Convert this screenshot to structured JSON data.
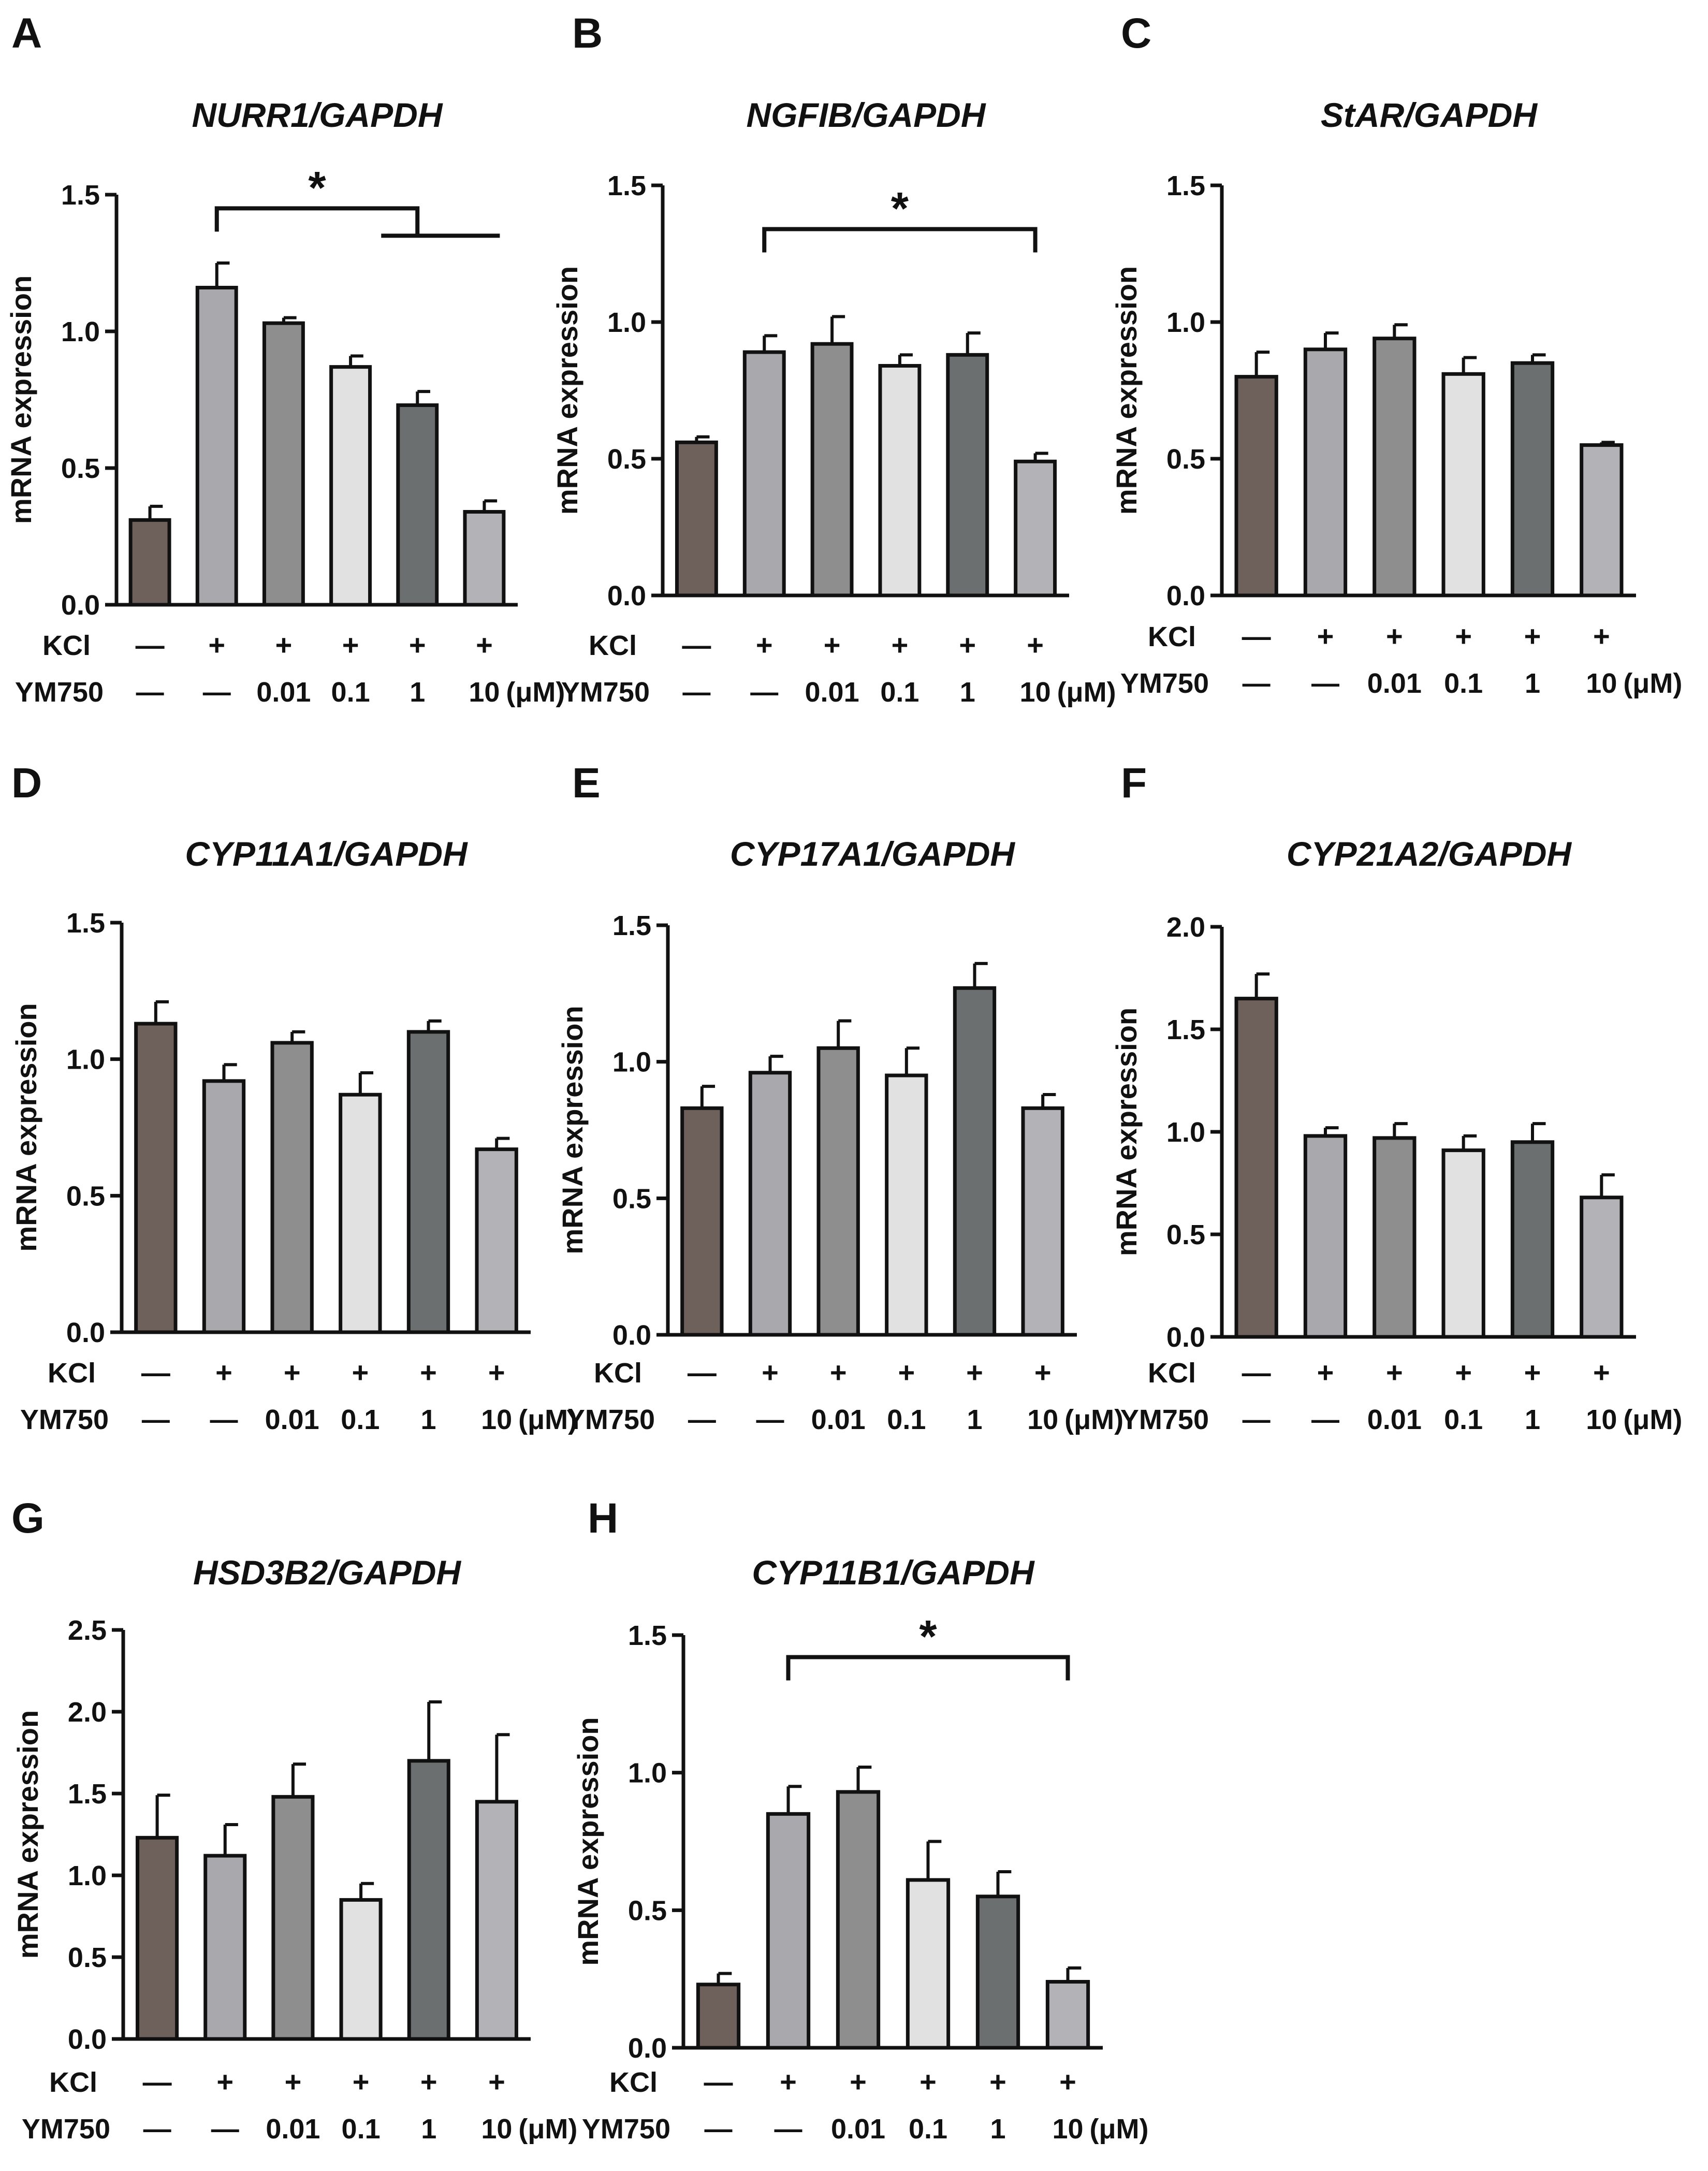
{
  "figure": {
    "condition_row_labels": [
      "KCl",
      "YM750"
    ],
    "kcl_values": [
      "—",
      "+",
      "+",
      "+",
      "+",
      "+"
    ],
    "ym750_values": [
      "—",
      "—",
      "0.01",
      "0.1",
      "1",
      "10"
    ],
    "unit_suffix": "(μM)",
    "significance_symbol": "*"
  },
  "colors": {
    "bars": [
      "#6e615c",
      "#a9a9ad",
      "#8e8e8e",
      "#e1e1e1",
      "#6c6f6f",
      "#b3b3b7"
    ],
    "stroke": "#111111"
  },
  "chart_data": [
    {
      "type": "bar",
      "panel": "A",
      "title": "NURR1/GAPDH",
      "ylabel": "mRNA expression",
      "ylim": [
        0,
        1.5
      ],
      "yticks": [
        "0.0",
        "0.5",
        "1.0",
        "1.5"
      ],
      "values": [
        0.31,
        1.16,
        1.03,
        0.87,
        0.73,
        0.34
      ],
      "errors": [
        0.05,
        0.09,
        0.02,
        0.04,
        0.05,
        0.04
      ],
      "significance": {
        "from": 1,
        "to": 5,
        "label": "*",
        "y": 1.45,
        "style": "step",
        "step_y": 1.35
      }
    },
    {
      "type": "bar",
      "panel": "B",
      "title": "NGFIB/GAPDH",
      "ylabel": "mRNA expression",
      "ylim": [
        0,
        1.5
      ],
      "yticks": [
        "0.0",
        "0.5",
        "1.0",
        "1.5"
      ],
      "values": [
        0.56,
        0.89,
        0.92,
        0.84,
        0.88,
        0.49
      ],
      "errors": [
        0.02,
        0.06,
        0.1,
        0.04,
        0.08,
        0.03
      ],
      "significance": {
        "from": 1,
        "to": 5,
        "label": "*",
        "y": 1.34,
        "style": "bracket"
      }
    },
    {
      "type": "bar",
      "panel": "C",
      "title": "StAR/GAPDH",
      "ylabel": "mRNA expression",
      "ylim": [
        0,
        1.5
      ],
      "yticks": [
        "0.0",
        "0.5",
        "1.0",
        "1.5"
      ],
      "values": [
        0.8,
        0.9,
        0.94,
        0.81,
        0.85,
        0.55
      ],
      "errors": [
        0.09,
        0.06,
        0.05,
        0.06,
        0.03,
        0.01
      ]
    },
    {
      "type": "bar",
      "panel": "D",
      "title": "CYP11A1/GAPDH",
      "ylabel": "mRNA expression",
      "ylim": [
        0,
        1.5
      ],
      "yticks": [
        "0.0",
        "0.5",
        "1.0",
        "1.5"
      ],
      "values": [
        1.13,
        0.92,
        1.06,
        0.87,
        1.1,
        0.67
      ],
      "errors": [
        0.08,
        0.06,
        0.04,
        0.08,
        0.04,
        0.04
      ]
    },
    {
      "type": "bar",
      "panel": "E",
      "title": "CYP17A1/GAPDH",
      "ylabel": "mRNA expression",
      "ylim": [
        0,
        1.5
      ],
      "yticks": [
        "0.0",
        "0.5",
        "1.0",
        "1.5"
      ],
      "values": [
        0.83,
        0.96,
        1.05,
        0.95,
        1.27,
        0.83
      ],
      "errors": [
        0.08,
        0.06,
        0.1,
        0.1,
        0.09,
        0.05
      ]
    },
    {
      "type": "bar",
      "panel": "F",
      "title": "CYP21A2/GAPDH",
      "ylabel": "mRNA expression",
      "ylim": [
        0,
        2.0
      ],
      "yticks": [
        "0.0",
        "0.5",
        "1.0",
        "1.5",
        "2.0"
      ],
      "values": [
        1.65,
        0.98,
        0.97,
        0.91,
        0.95,
        0.68
      ],
      "errors": [
        0.12,
        0.04,
        0.07,
        0.07,
        0.09,
        0.11
      ]
    },
    {
      "type": "bar",
      "panel": "G",
      "title": "HSD3B2/GAPDH",
      "ylabel": "mRNA expression",
      "ylim": [
        0,
        2.5
      ],
      "yticks": [
        "0.0",
        "0.5",
        "1.0",
        "1.5",
        "2.0",
        "2.5"
      ],
      "values": [
        1.23,
        1.12,
        1.48,
        0.85,
        1.7,
        1.45
      ],
      "errors": [
        0.26,
        0.19,
        0.2,
        0.1,
        0.36,
        0.41
      ]
    },
    {
      "type": "bar",
      "panel": "H",
      "title": "CYP11B1/GAPDH",
      "ylabel": "mRNA expression",
      "ylim": [
        0,
        1.5
      ],
      "yticks": [
        "0.0",
        "0.5",
        "1.0",
        "1.5"
      ],
      "values": [
        0.23,
        0.85,
        0.93,
        0.61,
        0.55,
        0.24
      ],
      "errors": [
        0.04,
        0.1,
        0.09,
        0.14,
        0.09,
        0.05
      ],
      "significance": {
        "from": 1,
        "to": 5,
        "label": "*",
        "y": 1.42,
        "style": "bracket"
      }
    }
  ]
}
